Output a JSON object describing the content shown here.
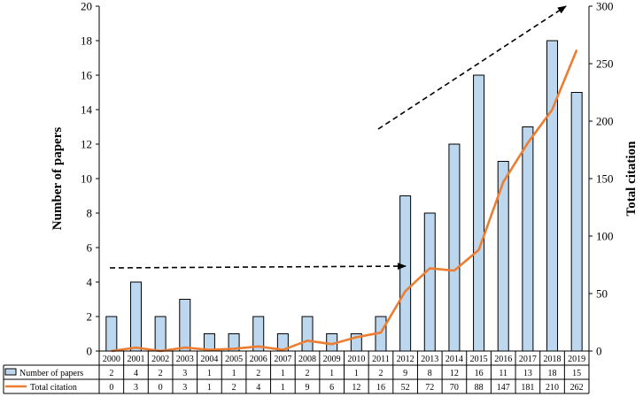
{
  "chart_data": {
    "type": "bar",
    "categories": [
      "2000",
      "2001",
      "2002",
      "2003",
      "2004",
      "2005",
      "2006",
      "2007",
      "2008",
      "2009",
      "2010",
      "2011",
      "2012",
      "2013",
      "2014",
      "2015",
      "2016",
      "2017",
      "2018",
      "2019"
    ],
    "series": [
      {
        "name": "Number of papers",
        "type": "bar",
        "axis": "left",
        "color": "#bdd7ee",
        "values": [
          2,
          4,
          2,
          3,
          1,
          1,
          2,
          1,
          2,
          1,
          1,
          2,
          9,
          8,
          12,
          16,
          11,
          13,
          18,
          15
        ]
      },
      {
        "name": "Total citation",
        "type": "line",
        "axis": "right",
        "color": "#ed7d31",
        "values": [
          0,
          3,
          0,
          3,
          1,
          2,
          4,
          1,
          9,
          6,
          12,
          16,
          52,
          72,
          70,
          88,
          147,
          181,
          210,
          262
        ]
      }
    ],
    "ylabel": "Number of papers",
    "ylabel_right": "Total citation",
    "ylim": [
      0,
      20
    ],
    "ylim_right": [
      0,
      300
    ],
    "yticks": [
      "0",
      "2",
      "4",
      "6",
      "8",
      "10",
      "12",
      "14",
      "16",
      "18",
      "20"
    ],
    "yticks_right": [
      "0",
      "50",
      "100",
      "150",
      "200",
      "250",
      "300"
    ],
    "grid": false,
    "legend": "data table below x-axis"
  }
}
